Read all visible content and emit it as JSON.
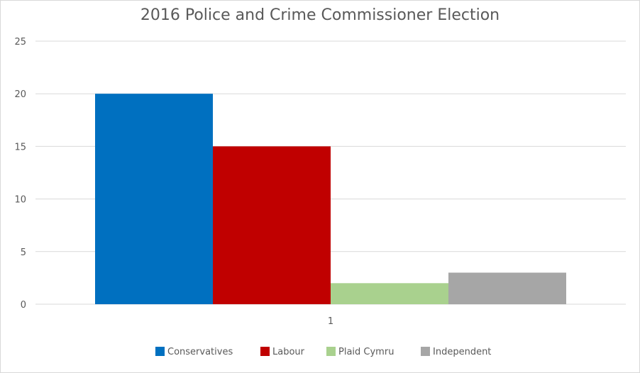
{
  "chart_data": {
    "type": "bar",
    "title": "2016 Police and Crime Commissioner Election",
    "categories": [
      "1"
    ],
    "series": [
      {
        "name": "Conservatives",
        "values": [
          20
        ],
        "color": "#0070C0"
      },
      {
        "name": "Labour",
        "values": [
          15
        ],
        "color": "#C00000"
      },
      {
        "name": "Plaid Cymru",
        "values": [
          2
        ],
        "color": "#A9D18E"
      },
      {
        "name": "Independent",
        "values": [
          3
        ],
        "color": "#A6A6A6"
      }
    ],
    "xlabel": "",
    "ylabel": "",
    "ylim": [
      0,
      25
    ],
    "yticks": [
      "0",
      "5",
      "10",
      "15",
      "20",
      "25"
    ],
    "grid": true,
    "legend_position": "bottom",
    "gridline_color": "#d9d9d9"
  }
}
